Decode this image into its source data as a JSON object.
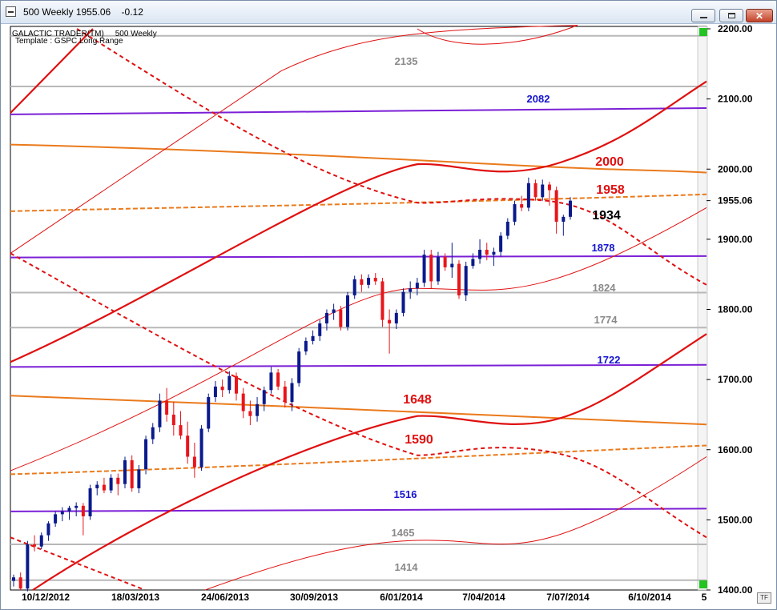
{
  "window": {
    "title": "500 Weekly 1955.06    -0.12"
  },
  "header": {
    "line1": "GALACTIC TRADER(TM)     500 Weekly",
    "line2": "Template : GSPC Long Range"
  },
  "toolbar": {
    "tf": "TF"
  },
  "colors": {
    "up": "#0a1a8c",
    "down": "#e8151b",
    "red": "#e01010",
    "orange": "#ea7a1c",
    "purple": "#7b1fd6",
    "gray": "#b0b0b0"
  },
  "chart_data": {
    "type": "candlestick",
    "ylim": [
      1400,
      2200
    ],
    "x_ticks": [
      "10/12/2012",
      "18/03/2013",
      "24/06/2013",
      "30/09/2013",
      "6/01/2014",
      "7/04/2014",
      "7/07/2014",
      "6/10/2014",
      "5"
    ],
    "y_ticks": [
      "2200.00",
      "2100.00",
      "2000.00",
      "1955.06",
      "1900.00",
      "1800.00",
      "1700.00",
      "1600.00",
      "1500.00",
      "1400.00"
    ],
    "y_tick_values": [
      2200,
      2100,
      2000,
      1955.06,
      1900,
      1800,
      1700,
      1600,
      1500,
      1400
    ],
    "level_labels": [
      {
        "text": "2135",
        "value": 2135,
        "color": "gray"
      },
      {
        "text": "2082",
        "value": 2082,
        "color": "blue"
      },
      {
        "text": "2000",
        "value": 2000,
        "color": "red"
      },
      {
        "text": "1958",
        "value": 1958,
        "color": "red"
      },
      {
        "text": "1934",
        "value": 1934,
        "color": "black"
      },
      {
        "text": "1878",
        "value": 1878,
        "color": "blue"
      },
      {
        "text": "1824",
        "value": 1824,
        "color": "gray"
      },
      {
        "text": "1774",
        "value": 1774,
        "color": "gray"
      },
      {
        "text": "1722",
        "value": 1722,
        "color": "blue"
      },
      {
        "text": "1648",
        "value": 1648,
        "color": "red"
      },
      {
        "text": "1590",
        "value": 1590,
        "color": "red"
      },
      {
        "text": "1516",
        "value": 1516,
        "color": "blue"
      },
      {
        "text": "1465",
        "value": 1465,
        "color": "gray"
      },
      {
        "text": "1414",
        "value": 1414,
        "color": "gray"
      }
    ],
    "candles": [
      [
        1413,
        1422,
        1405,
        1418
      ],
      [
        1418,
        1425,
        1400,
        1402
      ],
      [
        1402,
        1470,
        1398,
        1465
      ],
      [
        1465,
        1478,
        1455,
        1462
      ],
      [
        1462,
        1482,
        1458,
        1478
      ],
      [
        1478,
        1498,
        1470,
        1495
      ],
      [
        1495,
        1512,
        1490,
        1508
      ],
      [
        1508,
        1518,
        1498,
        1512
      ],
      [
        1512,
        1520,
        1500,
        1517
      ],
      [
        1517,
        1525,
        1505,
        1520
      ],
      [
        1520,
        1524,
        1478,
        1505
      ],
      [
        1505,
        1550,
        1500,
        1545
      ],
      [
        1545,
        1555,
        1535,
        1550
      ],
      [
        1550,
        1560,
        1538,
        1542
      ],
      [
        1542,
        1565,
        1538,
        1560
      ],
      [
        1560,
        1566,
        1535,
        1551
      ],
      [
        1551,
        1590,
        1545,
        1585
      ],
      [
        1585,
        1592,
        1540,
        1545
      ],
      [
        1545,
        1578,
        1538,
        1572
      ],
      [
        1572,
        1620,
        1565,
        1615
      ],
      [
        1615,
        1638,
        1608,
        1632
      ],
      [
        1632,
        1680,
        1625,
        1670
      ],
      [
        1670,
        1688,
        1640,
        1650
      ],
      [
        1650,
        1668,
        1620,
        1635
      ],
      [
        1635,
        1655,
        1615,
        1620
      ],
      [
        1620,
        1640,
        1580,
        1590
      ],
      [
        1590,
        1610,
        1560,
        1575
      ],
      [
        1575,
        1635,
        1570,
        1630
      ],
      [
        1630,
        1680,
        1625,
        1675
      ],
      [
        1675,
        1698,
        1668,
        1690
      ],
      [
        1690,
        1700,
        1675,
        1685
      ],
      [
        1685,
        1712,
        1680,
        1705
      ],
      [
        1705,
        1710,
        1670,
        1680
      ],
      [
        1680,
        1688,
        1645,
        1655
      ],
      [
        1655,
        1670,
        1635,
        1648
      ],
      [
        1648,
        1675,
        1640,
        1665
      ],
      [
        1665,
        1690,
        1655,
        1685
      ],
      [
        1685,
        1718,
        1680,
        1710
      ],
      [
        1710,
        1715,
        1685,
        1690
      ],
      [
        1690,
        1698,
        1660,
        1668
      ],
      [
        1668,
        1702,
        1655,
        1695
      ],
      [
        1695,
        1745,
        1690,
        1740
      ],
      [
        1740,
        1760,
        1735,
        1755
      ],
      [
        1755,
        1770,
        1750,
        1762
      ],
      [
        1762,
        1785,
        1755,
        1780
      ],
      [
        1780,
        1800,
        1770,
        1795
      ],
      [
        1795,
        1808,
        1785,
        1800
      ],
      [
        1800,
        1805,
        1770,
        1775
      ],
      [
        1775,
        1825,
        1770,
        1820
      ],
      [
        1820,
        1848,
        1815,
        1843
      ],
      [
        1843,
        1850,
        1825,
        1835
      ],
      [
        1835,
        1850,
        1830,
        1845
      ],
      [
        1845,
        1852,
        1835,
        1840
      ],
      [
        1840,
        1845,
        1775,
        1785
      ],
      [
        1785,
        1800,
        1737,
        1780
      ],
      [
        1780,
        1800,
        1772,
        1795
      ],
      [
        1795,
        1830,
        1790,
        1825
      ],
      [
        1825,
        1840,
        1815,
        1830
      ],
      [
        1830,
        1845,
        1820,
        1838
      ],
      [
        1838,
        1885,
        1832,
        1878
      ],
      [
        1878,
        1885,
        1830,
        1840
      ],
      [
        1840,
        1882,
        1835,
        1875
      ],
      [
        1875,
        1880,
        1855,
        1860
      ],
      [
        1860,
        1895,
        1845,
        1865
      ],
      [
        1865,
        1870,
        1815,
        1820
      ],
      [
        1820,
        1868,
        1812,
        1862
      ],
      [
        1862,
        1880,
        1858,
        1872
      ],
      [
        1872,
        1900,
        1865,
        1885
      ],
      [
        1885,
        1895,
        1870,
        1878
      ],
      [
        1878,
        1888,
        1862,
        1882
      ],
      [
        1882,
        1910,
        1875,
        1905
      ],
      [
        1905,
        1930,
        1900,
        1925
      ],
      [
        1925,
        1955,
        1920,
        1950
      ],
      [
        1950,
        1962,
        1940,
        1945
      ],
      [
        1945,
        1988,
        1940,
        1980
      ],
      [
        1980,
        1985,
        1955,
        1960
      ],
      [
        1960,
        1985,
        1955,
        1978
      ],
      [
        1978,
        1982,
        1948,
        1970
      ],
      [
        1970,
        1975,
        1908,
        1925
      ],
      [
        1925,
        1935,
        1905,
        1932
      ],
      [
        1932,
        1960,
        1928,
        1955
      ]
    ]
  }
}
